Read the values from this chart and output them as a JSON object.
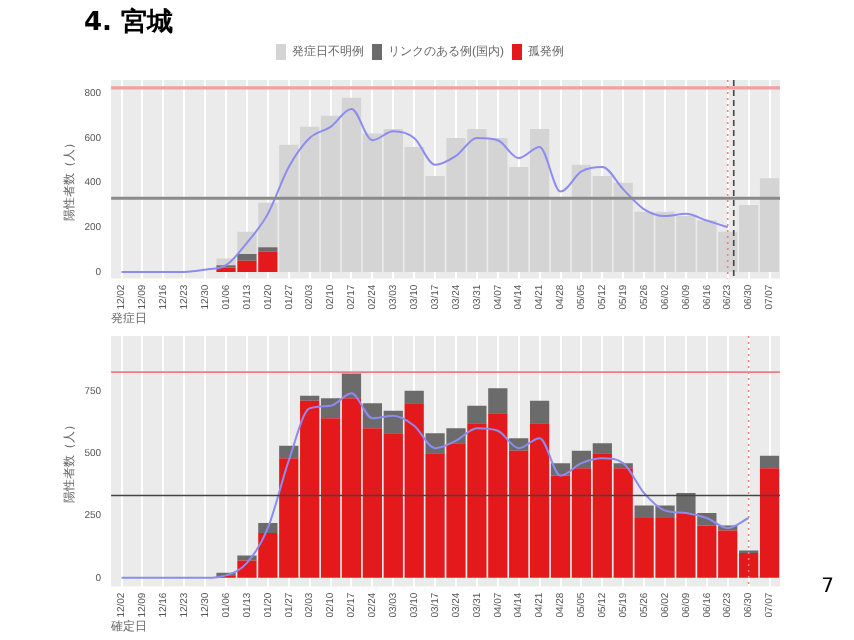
{
  "chart_data": [
    {
      "type": "bar",
      "title": "4. 宮城",
      "xlabel": "発症日",
      "ylabel": "陽性者数（人）",
      "stacked": true,
      "legend": "top",
      "grid": "x",
      "categories": [
        "12/02",
        "12/09",
        "12/16",
        "12/23",
        "12/30",
        "01/06",
        "01/13",
        "01/20",
        "01/27",
        "02/03",
        "02/10",
        "02/17",
        "02/24",
        "03/03",
        "03/10",
        "03/17",
        "03/24",
        "03/31",
        "04/07",
        "04/14",
        "04/21",
        "04/28",
        "05/05",
        "05/12",
        "05/19",
        "05/26",
        "06/02",
        "06/09",
        "06/16",
        "06/23",
        "06/30",
        "07/07"
      ],
      "ylim": [
        -30,
        860
      ],
      "yticks": [
        0,
        200,
        400,
        600,
        800
      ],
      "series": [
        {
          "name": "孤発例",
          "color": "#e3191c",
          "values": [
            0,
            0,
            0,
            0,
            0,
            20,
            50,
            90,
            0,
            0,
            0,
            0,
            0,
            0,
            0,
            0,
            0,
            0,
            0,
            0,
            0,
            0,
            0,
            0,
            0,
            0,
            0,
            0,
            0,
            0,
            0,
            0
          ]
        },
        {
          "name": "リンクのある例(国内)",
          "color": "#6b6b6b",
          "values": [
            0,
            0,
            0,
            0,
            0,
            10,
            30,
            20,
            0,
            0,
            0,
            0,
            0,
            0,
            0,
            0,
            0,
            0,
            0,
            0,
            0,
            0,
            0,
            0,
            0,
            0,
            0,
            0,
            0,
            0,
            0,
            0
          ]
        },
        {
          "name": "発症日不明例",
          "color": "#d4d4d4",
          "values": [
            0,
            0,
            0,
            0,
            0,
            30,
            100,
            200,
            570,
            650,
            700,
            780,
            620,
            640,
            560,
            430,
            600,
            640,
            600,
            470,
            640,
            330,
            480,
            430,
            400,
            270,
            270,
            250,
            230,
            180,
            300,
            420
          ]
        },
        {
          "type": "line",
          "color": "#8c8cf0",
          "values": [
            0,
            0,
            0,
            0,
            10,
            30,
            130,
            260,
            470,
            600,
            650,
            730,
            590,
            630,
            600,
            480,
            520,
            600,
            590,
            510,
            560,
            360,
            450,
            470,
            370,
            280,
            250,
            260,
            230,
            200,
            null,
            null
          ]
        }
      ],
      "ref_lines": [
        {
          "axis": "y",
          "value": 825,
          "color": "#f2a0a0"
        },
        {
          "axis": "y",
          "value": 330,
          "color": "#8a8a8a"
        },
        {
          "axis": "x",
          "value": "06/23",
          "color": "#f08080",
          "line_style": "dotted"
        },
        {
          "axis": "x",
          "value": "06/23",
          "color": "#444444",
          "line_style": "dashed"
        }
      ]
    },
    {
      "type": "bar",
      "xlabel": "確定日",
      "ylabel": "陽性者数（人）",
      "stacked": true,
      "grid": "x",
      "annotations": [
        "7"
      ],
      "categories": [
        "12/02",
        "12/09",
        "12/16",
        "12/23",
        "12/30",
        "01/06",
        "01/13",
        "01/20",
        "01/27",
        "02/03",
        "02/10",
        "02/17",
        "02/24",
        "03/03",
        "03/10",
        "03/17",
        "03/24",
        "03/31",
        "04/07",
        "04/14",
        "04/21",
        "04/28",
        "05/05",
        "05/12",
        "05/19",
        "05/26",
        "06/02",
        "06/09",
        "06/16",
        "06/23",
        "06/30",
        "07/07"
      ],
      "ylim": [
        -35,
        970
      ],
      "yticks": [
        0,
        250,
        500,
        750
      ],
      "series": [
        {
          "color": "#e3191c",
          "values": [
            0,
            0,
            0,
            0,
            0,
            10,
            70,
            180,
            480,
            710,
            640,
            720,
            600,
            580,
            700,
            500,
            540,
            620,
            660,
            510,
            620,
            410,
            440,
            500,
            440,
            240,
            240,
            260,
            210,
            190,
            100,
            440
          ]
        },
        {
          "color": "#6b6b6b",
          "values": [
            0,
            0,
            0,
            0,
            0,
            10,
            20,
            40,
            50,
            20,
            80,
            100,
            100,
            90,
            50,
            80,
            60,
            70,
            100,
            50,
            90,
            50,
            70,
            40,
            20,
            50,
            50,
            80,
            50,
            20,
            10,
            50
          ]
        },
        {
          "type": "line",
          "color": "#8c8cf0",
          "values": [
            0,
            0,
            0,
            0,
            0,
            10,
            60,
            200,
            470,
            680,
            690,
            740,
            640,
            650,
            610,
            520,
            550,
            600,
            590,
            520,
            560,
            410,
            460,
            480,
            460,
            340,
            270,
            260,
            240,
            200,
            240,
            null
          ]
        }
      ],
      "ref_lines": [
        {
          "axis": "y",
          "value": 825,
          "color": "#e88080"
        },
        {
          "axis": "y",
          "value": 330,
          "color": "#444444"
        },
        {
          "axis": "x",
          "value": "06/30",
          "color": "#f08080",
          "line_style": "dotted"
        }
      ]
    }
  ]
}
